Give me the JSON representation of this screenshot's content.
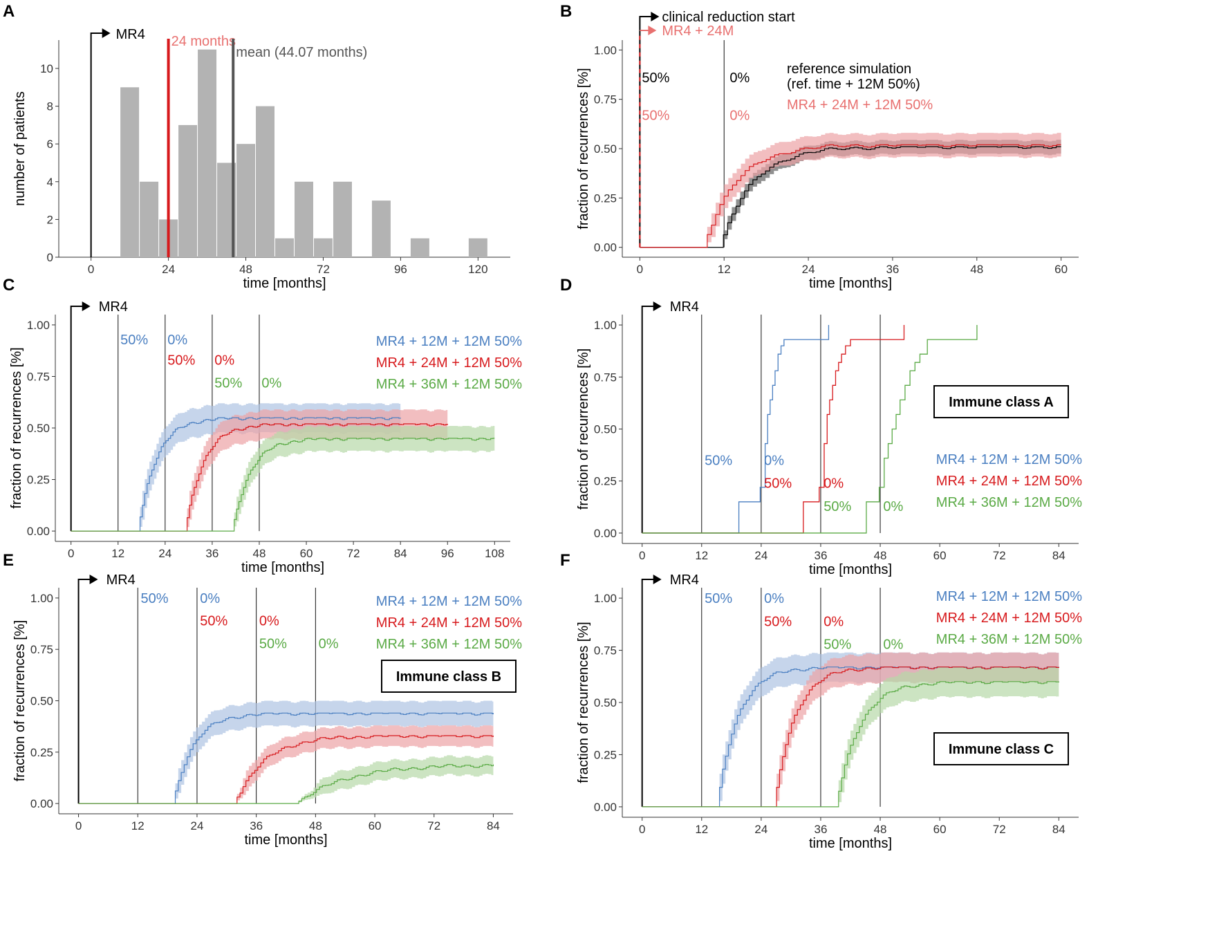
{
  "colors": {
    "blue": "#4a7fc1",
    "blue_fill": "#aec3e3",
    "red": "#d7191c",
    "red_light": "#e8706f",
    "red_fill": "#eca3a5",
    "green": "#5aaa45",
    "green_fill": "#b7d9a8",
    "black": "#000000",
    "dark_fill": "#6b6b6b",
    "gray_bar": "#b3b3b3",
    "mean_line": "#555555"
  },
  "chart_data": [
    {
      "id": "A",
      "panel_label": "A",
      "type": "bar",
      "xlabel": "time [months]",
      "ylabel": "number of patients",
      "xlim": [
        -10,
        130
      ],
      "ylim": [
        0,
        11.5
      ],
      "xticks": [
        0,
        24,
        48,
        72,
        96,
        120
      ],
      "yticks": [
        0,
        2,
        4,
        6,
        8,
        10
      ],
      "bin_width": 6,
      "bins": [
        {
          "x0": 9,
          "value": 9
        },
        {
          "x0": 15,
          "value": 4
        },
        {
          "x0": 21,
          "value": 2
        },
        {
          "x0": 27,
          "value": 7
        },
        {
          "x0": 33,
          "value": 11
        },
        {
          "x0": 39,
          "value": 5
        },
        {
          "x0": 45,
          "value": 6
        },
        {
          "x0": 51,
          "value": 8
        },
        {
          "x0": 57,
          "value": 1
        },
        {
          "x0": 63,
          "value": 4
        },
        {
          "x0": 69,
          "value": 1
        },
        {
          "x0": 75,
          "value": 4
        },
        {
          "x0": 87,
          "value": 3
        },
        {
          "x0": 99,
          "value": 1
        },
        {
          "x0": 117,
          "value": 1
        }
      ],
      "start_label": "MR4",
      "vlines": [
        {
          "x": 24,
          "label": "24 months",
          "color": "red"
        },
        {
          "x": 44.07,
          "label": "mean (44.07 months)",
          "color": "mean_line"
        }
      ]
    },
    {
      "id": "B",
      "panel_label": "B",
      "type": "line",
      "xlabel": "time [months]",
      "ylabel": "fraction of recurrences [%]",
      "xlim": [
        -2.5,
        62.5
      ],
      "ylim": [
        -0.05,
        1.05
      ],
      "xticks": [
        0,
        12,
        24,
        36,
        48,
        60
      ],
      "yticks": [
        "0.00",
        "0.25",
        "0.50",
        "0.75",
        "1.00"
      ],
      "start_labels": [
        "clinical reduction start",
        "MR4 + 24M"
      ],
      "vlines": [
        0,
        12
      ],
      "annotations": [
        {
          "text": "50%",
          "x": 0.3,
          "y": 0.86,
          "color": "black"
        },
        {
          "text": "0%",
          "x": 12.8,
          "y": 0.86,
          "color": "black"
        },
        {
          "text": "50%",
          "x": 0.3,
          "y": 0.67,
          "color": "red_light"
        },
        {
          "text": "0%",
          "x": 12.8,
          "y": 0.67,
          "color": "red_light"
        }
      ],
      "legend": [
        {
          "text": "reference simulation",
          "color": "black"
        },
        {
          "text": "(ref. time + 12M 50%)",
          "color": "black"
        },
        {
          "text": "MR4 + 24M + 12M 50%",
          "color": "red_light"
        }
      ],
      "series": [
        {
          "name": "reference simulation",
          "color": "black",
          "fill": "dark_fill",
          "onset": 11.3,
          "x_end": 60,
          "plateau": 0.51,
          "band": 0.035,
          "rate": 4.5
        },
        {
          "name": "MR4 + 24M + 12M 50%",
          "color": "red",
          "fill": "red_fill",
          "onset": 9.0,
          "x_end": 60,
          "plateau": 0.52,
          "band": 0.06,
          "rate": 4.5
        }
      ]
    },
    {
      "id": "C",
      "panel_label": "C",
      "type": "line",
      "xlabel": "time [months]",
      "ylabel": "fraction of recurrences [%]",
      "xlim": [
        -4,
        112
      ],
      "ylim": [
        -0.05,
        1.05
      ],
      "xticks": [
        0,
        12,
        24,
        36,
        48,
        60,
        72,
        84,
        96,
        108
      ],
      "yticks": [
        "0.00",
        "0.25",
        "0.50",
        "0.75",
        "1.00"
      ],
      "start_labels": [
        "MR4"
      ],
      "vlines": [
        12,
        24,
        36,
        48
      ],
      "annotations": [
        {
          "text": "50%",
          "x": 12.6,
          "y": 0.93,
          "color": "blue"
        },
        {
          "text": "0%",
          "x": 24.6,
          "y": 0.93,
          "color": "blue"
        },
        {
          "text": "50%",
          "x": 24.6,
          "y": 0.83,
          "color": "red"
        },
        {
          "text": "0%",
          "x": 36.6,
          "y": 0.83,
          "color": "red"
        },
        {
          "text": "50%",
          "x": 36.6,
          "y": 0.72,
          "color": "green"
        },
        {
          "text": "0%",
          "x": 48.6,
          "y": 0.72,
          "color": "green"
        }
      ],
      "legend": [
        {
          "text": "MR4 + 12M + 12M 50%",
          "color": "blue"
        },
        {
          "text": "MR4 + 24M + 12M 50%",
          "color": "red"
        },
        {
          "text": "MR4 + 36M + 12M 50%",
          "color": "green"
        }
      ],
      "series": [
        {
          "name": "MR4 + 12M + 12M 50%",
          "color": "blue",
          "fill": "blue_fill",
          "onset": 17,
          "x_end": 84,
          "plateau": 0.55,
          "band": 0.07,
          "rate": 4.5
        },
        {
          "name": "MR4 + 24M + 12M 50%",
          "color": "red",
          "fill": "red_fill",
          "onset": 29,
          "x_end": 96,
          "plateau": 0.52,
          "band": 0.07,
          "rate": 4.5
        },
        {
          "name": "MR4 + 36M + 12M 50%",
          "color": "green",
          "fill": "green_fill",
          "onset": 41,
          "x_end": 108,
          "plateau": 0.45,
          "band": 0.06,
          "rate": 4.5
        }
      ]
    },
    {
      "id": "D",
      "panel_label": "D",
      "type": "line",
      "xlabel": "time [months]",
      "ylabel": "fraction of recurrences [%]",
      "xlim": [
        -4,
        88
      ],
      "ylim": [
        -0.05,
        1.05
      ],
      "xticks": [
        0,
        12,
        24,
        36,
        48,
        60,
        72,
        84
      ],
      "yticks": [
        "0.00",
        "0.25",
        "0.50",
        "0.75",
        "1.00"
      ],
      "start_labels": [
        "MR4"
      ],
      "vlines": [
        12,
        24,
        36,
        48
      ],
      "annotations": [
        {
          "text": "50%",
          "x": 12.6,
          "y": 0.35,
          "color": "blue"
        },
        {
          "text": "0%",
          "x": 24.6,
          "y": 0.35,
          "color": "blue"
        },
        {
          "text": "50%",
          "x": 24.6,
          "y": 0.24,
          "color": "red"
        },
        {
          "text": "0%",
          "x": 36.6,
          "y": 0.24,
          "color": "red"
        },
        {
          "text": "50%",
          "x": 36.6,
          "y": 0.13,
          "color": "green"
        },
        {
          "text": "0%",
          "x": 48.6,
          "y": 0.13,
          "color": "green"
        }
      ],
      "legend": [
        {
          "text": "MR4 + 12M + 12M 50%",
          "color": "blue"
        },
        {
          "text": "MR4 + 24M + 12M 50%",
          "color": "red"
        },
        {
          "text": "MR4 + 36M + 12M 50%",
          "color": "green"
        }
      ],
      "box_label": "Immune class A",
      "steps": [
        {
          "name": "MR4 + 12M + 12M 50%",
          "color": "blue",
          "x": [
            0,
            19.5,
            19.5,
            23.8,
            23.8,
            24.8,
            25.3,
            25.8,
            26.3,
            26.8,
            27.4,
            28.0,
            28.6,
            29.0,
            29.5,
            37.6,
            37.6
          ],
          "y": [
            0,
            0,
            0.15,
            0.15,
            0.22,
            0.43,
            0.57,
            0.64,
            0.71,
            0.78,
            0.86,
            0.9,
            0.93,
            0.93,
            0.93,
            0.93,
            1.0
          ]
        },
        {
          "name": "MR4 + 24M + 12M 50%",
          "color": "red",
          "x": [
            0,
            32.5,
            32.5,
            35.7,
            35.7,
            36.7,
            37.3,
            37.8,
            38.4,
            39.0,
            39.6,
            40.2,
            41.0,
            42.0,
            52.8,
            52.8
          ],
          "y": [
            0,
            0,
            0.15,
            0.15,
            0.22,
            0.43,
            0.57,
            0.64,
            0.71,
            0.78,
            0.82,
            0.86,
            0.9,
            0.93,
            0.93,
            1.0
          ]
        },
        {
          "name": "MR4 + 36M + 12M 50%",
          "color": "green",
          "x": [
            0,
            45.2,
            45.2,
            47.8,
            47.8,
            48.8,
            49.6,
            50.4,
            51.2,
            52.0,
            53.0,
            54.0,
            55.0,
            56.0,
            57.5,
            67.5,
            67.5
          ],
          "y": [
            0,
            0,
            0.15,
            0.15,
            0.22,
            0.36,
            0.43,
            0.5,
            0.57,
            0.64,
            0.71,
            0.78,
            0.82,
            0.86,
            0.93,
            0.93,
            1.0
          ]
        }
      ]
    },
    {
      "id": "E",
      "panel_label": "E",
      "type": "line",
      "xlabel": "time [months]",
      "ylabel": "fraction of recurrences [%]",
      "xlim": [
        -4,
        88
      ],
      "ylim": [
        -0.05,
        1.05
      ],
      "xticks": [
        0,
        12,
        24,
        36,
        48,
        60,
        72,
        84
      ],
      "yticks": [
        "0.00",
        "0.25",
        "0.50",
        "0.75",
        "1.00"
      ],
      "start_labels": [
        "MR4"
      ],
      "vlines": [
        12,
        24,
        36,
        48
      ],
      "annotations": [
        {
          "text": "50%",
          "x": 12.6,
          "y": 1.0,
          "color": "blue"
        },
        {
          "text": "0%",
          "x": 24.6,
          "y": 1.0,
          "color": "blue"
        },
        {
          "text": "50%",
          "x": 24.6,
          "y": 0.89,
          "color": "red"
        },
        {
          "text": "0%",
          "x": 36.6,
          "y": 0.89,
          "color": "red"
        },
        {
          "text": "50%",
          "x": 36.6,
          "y": 0.78,
          "color": "green"
        },
        {
          "text": "0%",
          "x": 48.6,
          "y": 0.78,
          "color": "green"
        }
      ],
      "legend": [
        {
          "text": "MR4 + 12M + 12M 50%",
          "color": "blue"
        },
        {
          "text": "MR4 + 24M + 12M 50%",
          "color": "red"
        },
        {
          "text": "MR4 + 36M + 12M 50%",
          "color": "green"
        }
      ],
      "box_label": "Immune class B",
      "series": [
        {
          "name": "MR4 + 12M + 12M 50%",
          "color": "blue",
          "fill": "blue_fill",
          "onset": 19,
          "x_end": 84,
          "plateau": 0.44,
          "band": 0.06,
          "rate": 4.0
        },
        {
          "name": "MR4 + 24M + 12M 50%",
          "color": "red",
          "fill": "red_fill",
          "onset": 31.5,
          "x_end": 84,
          "plateau": 0.33,
          "band": 0.05,
          "rate": 6.0
        },
        {
          "name": "MR4 + 36M + 12M 50%",
          "color": "green",
          "fill": "green_fill",
          "onset": 44,
          "x_end": 84,
          "plateau": 0.19,
          "band": 0.045,
          "rate": 10.0
        }
      ]
    },
    {
      "id": "F",
      "panel_label": "F",
      "type": "line",
      "xlabel": "time [months]",
      "ylabel": "fraction of recurrences [%]",
      "xlim": [
        -4,
        88
      ],
      "ylim": [
        -0.05,
        1.05
      ],
      "xticks": [
        0,
        12,
        24,
        36,
        48,
        60,
        72,
        84
      ],
      "yticks": [
        "0.00",
        "0.25",
        "0.50",
        "0.75",
        "1.00"
      ],
      "start_labels": [
        "MR4"
      ],
      "vlines": [
        12,
        24,
        36,
        48
      ],
      "annotations": [
        {
          "text": "50%",
          "x": 12.6,
          "y": 1.0,
          "color": "blue"
        },
        {
          "text": "0%",
          "x": 24.6,
          "y": 1.0,
          "color": "blue"
        },
        {
          "text": "50%",
          "x": 24.6,
          "y": 0.89,
          "color": "red"
        },
        {
          "text": "0%",
          "x": 36.6,
          "y": 0.89,
          "color": "red"
        },
        {
          "text": "50%",
          "x": 36.6,
          "y": 0.78,
          "color": "green"
        },
        {
          "text": "0%",
          "x": 48.6,
          "y": 0.78,
          "color": "green"
        }
      ],
      "legend": [
        {
          "text": "MR4 + 12M + 12M 50%",
          "color": "blue"
        },
        {
          "text": "MR4 + 24M + 12M 50%",
          "color": "red"
        },
        {
          "text": "MR4 + 36M + 12M 50%",
          "color": "green"
        }
      ],
      "box_label": "Immune class C",
      "series": [
        {
          "name": "MR4 + 12M + 12M 50%",
          "color": "blue",
          "fill": "blue_fill",
          "onset": 15,
          "x_end": 84,
          "plateau": 0.67,
          "band": 0.07,
          "rate": 4.0
        },
        {
          "name": "MR4 + 24M + 12M 50%",
          "color": "red",
          "fill": "red_fill",
          "onset": 26.5,
          "x_end": 84,
          "plateau": 0.67,
          "band": 0.07,
          "rate": 4.0
        },
        {
          "name": "MR4 + 36M + 12M 50%",
          "color": "green",
          "fill": "green_fill",
          "onset": 39,
          "x_end": 84,
          "plateau": 0.6,
          "band": 0.07,
          "rate": 4.5
        }
      ]
    }
  ]
}
